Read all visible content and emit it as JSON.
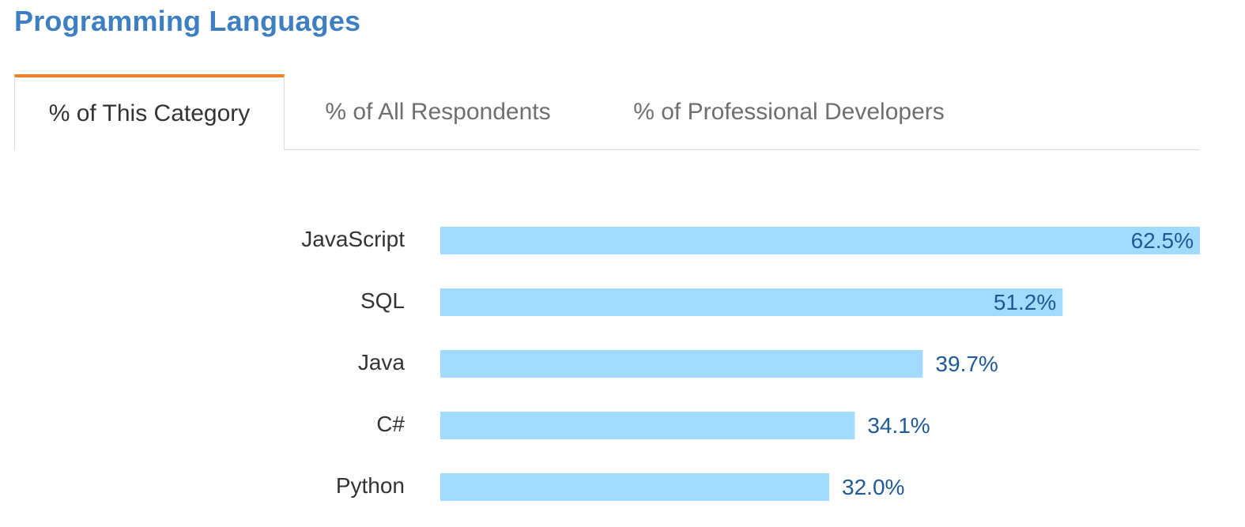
{
  "header": {
    "title": "Programming Languages"
  },
  "tabs": [
    {
      "label": "% of This Category",
      "active": true
    },
    {
      "label": "% of All Respondents",
      "active": false
    },
    {
      "label": "% of Professional Developers",
      "active": false
    }
  ],
  "colors": {
    "title": "#3d7fc1",
    "tab_accent": "#f48024",
    "bar": "#a3daff",
    "value_text": "#1f5a96",
    "label_text": "#333333"
  },
  "chart_data": {
    "type": "bar",
    "orientation": "horizontal",
    "categories": [
      "JavaScript",
      "SQL",
      "Java",
      "C#",
      "Python"
    ],
    "values": [
      62.5,
      51.2,
      39.7,
      34.1,
      32.0
    ],
    "value_labels": [
      "62.5%",
      "51.2%",
      "39.7%",
      "34.1%",
      "32.0%"
    ],
    "xlim": [
      0,
      62.5
    ],
    "grid": false,
    "legend": "none"
  }
}
